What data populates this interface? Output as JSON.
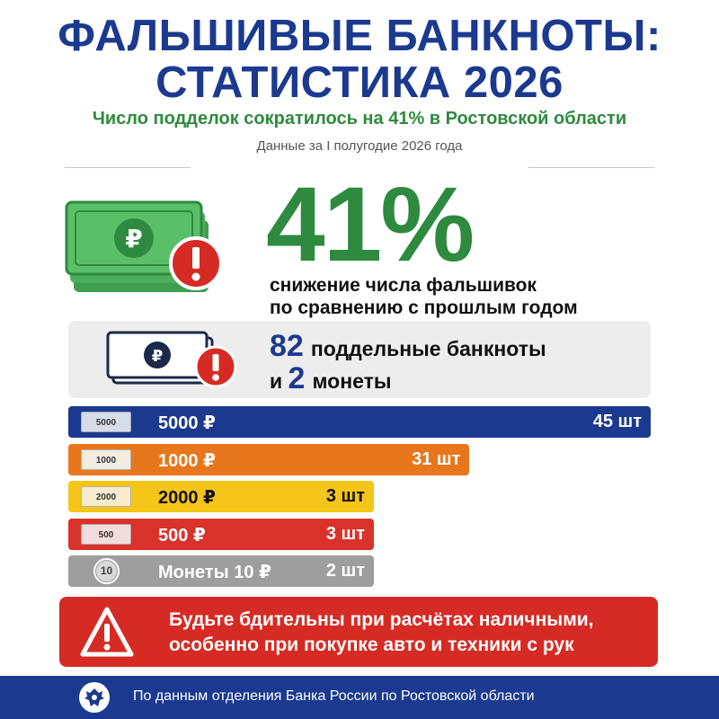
{
  "header": {
    "title_line1": "ФАЛЬШИВЫЕ БАНКНОТЫ:",
    "title_line2": "СТАТИСТИКА 2026",
    "subtitle": "Число подделок сократилось на 41% в Ростовской области",
    "period": "Данные за I полугодие 2026 года"
  },
  "headline": {
    "value": "41%",
    "desc_line1": "снижение числа фальшивок",
    "desc_line2": "по сравнению с прошлым годом"
  },
  "summary": {
    "banknotes_count": "82",
    "banknotes_label": "поддельные банкноты",
    "conj": "и",
    "coins_count": "2",
    "coins_label": "монеты"
  },
  "chart_data": {
    "type": "bar",
    "orientation": "horizontal",
    "categories": [
      "5000 ₽",
      "1000 ₽",
      "2000 ₽",
      "500 ₽",
      "Монеты 10 ₽"
    ],
    "values": [
      45,
      31,
      3,
      3,
      2
    ],
    "value_labels": [
      "45 шт",
      "31 шт",
      "3 шт",
      "3 шт",
      "2 шт"
    ],
    "icon_labels": [
      "5000",
      "1000",
      "2000",
      "500",
      "10"
    ],
    "colors": [
      "#1b3a8f",
      "#e8761c",
      "#f5c518",
      "#d9322b",
      "#9e9e9e"
    ],
    "text_colors": [
      "#ffffff",
      "#ffffff",
      "#111111",
      "#ffffff",
      "#ffffff"
    ],
    "note_colors": [
      "#d7dde8",
      "#f3ece0",
      "#f6eccd",
      "#f3dcdc",
      "#d9d9d9"
    ]
  },
  "warning": {
    "line1": "Будьте бдительны при расчётах наличными,",
    "line2": "особенно при покупке авто и техники с рук"
  },
  "footer": {
    "source": "По данным отделения Банка России по Ростовской области"
  },
  "colors": {
    "brand_blue": "#1b3a8f",
    "accent_green": "#2e8a3e",
    "alert_red": "#d62b24"
  }
}
